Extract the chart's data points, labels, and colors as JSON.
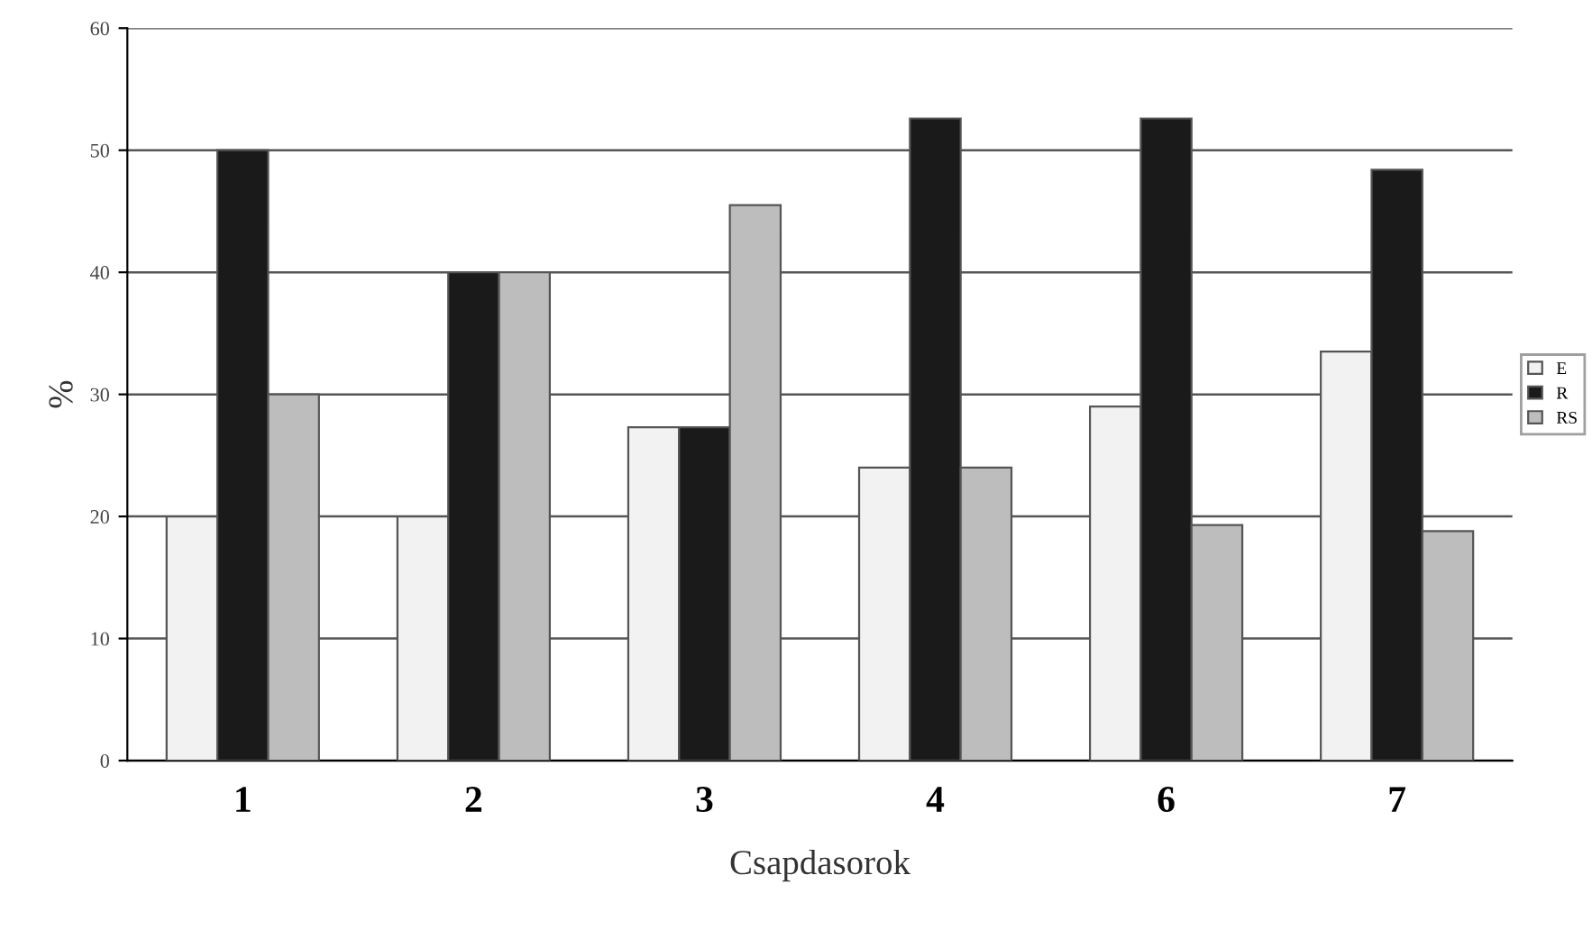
{
  "chart_data": {
    "type": "bar",
    "xlabel": "Csapdasorok",
    "ylabel": "%",
    "categories": [
      "1",
      "2",
      "3",
      "4",
      "6",
      "7"
    ],
    "series": [
      {
        "name": "E",
        "color": "#f2f2f2",
        "values": [
          20,
          20,
          27.3,
          24,
          29,
          33.5
        ]
      },
      {
        "name": "R",
        "color": "#1a1a1a",
        "values": [
          50,
          40,
          27.3,
          52.6,
          52.6,
          48.4
        ]
      },
      {
        "name": "RS",
        "color": "#bdbdbd",
        "values": [
          30,
          40,
          45.5,
          24,
          19.3,
          18.8
        ]
      }
    ],
    "ylim": [
      0,
      60
    ],
    "yticks": [
      0,
      10,
      20,
      30,
      40,
      50,
      60
    ],
    "grid": "y",
    "legend": "right"
  }
}
